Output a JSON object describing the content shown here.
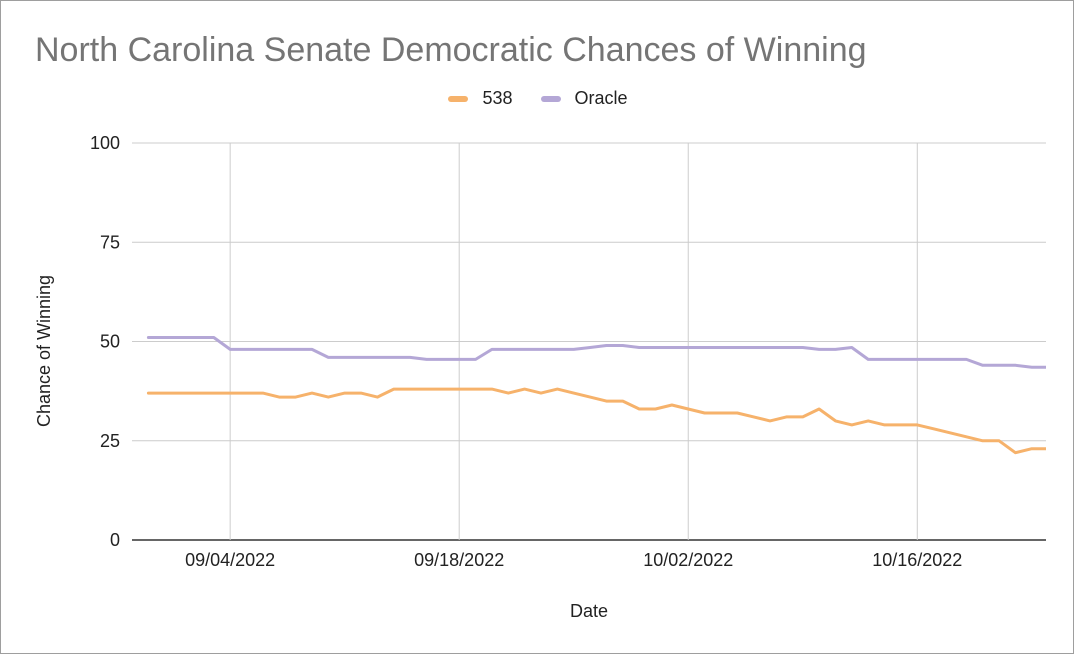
{
  "chart_data": {
    "type": "line",
    "title": "North Carolina Senate Democratic Chances of Winning",
    "xlabel": "Date",
    "ylabel": "Chance of Winning",
    "ylim": [
      0,
      100
    ],
    "yticks": [
      0,
      25,
      50,
      75,
      100
    ],
    "xlim": [
      "2022-08-29",
      "2022-10-25"
    ],
    "xticks": [
      {
        "date": "2022-09-04",
        "label": "09/04/2022"
      },
      {
        "date": "2022-09-18",
        "label": "09/18/2022"
      },
      {
        "date": "2022-10-02",
        "label": "10/02/2022"
      },
      {
        "date": "2022-10-16",
        "label": "10/16/2022"
      }
    ],
    "grid": true,
    "legend_position": "top-center",
    "series": [
      {
        "name": "538",
        "color": "#F6B26B",
        "points": [
          [
            "2022-08-30",
            37
          ],
          [
            "2022-09-01",
            37
          ],
          [
            "2022-09-02",
            37
          ],
          [
            "2022-09-03",
            37
          ],
          [
            "2022-09-04",
            37
          ],
          [
            "2022-09-05",
            37
          ],
          [
            "2022-09-06",
            37
          ],
          [
            "2022-09-07",
            36
          ],
          [
            "2022-09-08",
            36
          ],
          [
            "2022-09-09",
            37
          ],
          [
            "2022-09-10",
            36
          ],
          [
            "2022-09-11",
            37
          ],
          [
            "2022-09-12",
            37
          ],
          [
            "2022-09-13",
            36
          ],
          [
            "2022-09-14",
            38
          ],
          [
            "2022-09-15",
            38
          ],
          [
            "2022-09-16",
            38
          ],
          [
            "2022-09-17",
            38
          ],
          [
            "2022-09-18",
            38
          ],
          [
            "2022-09-19",
            38
          ],
          [
            "2022-09-20",
            38
          ],
          [
            "2022-09-21",
            37
          ],
          [
            "2022-09-22",
            38
          ],
          [
            "2022-09-23",
            37
          ],
          [
            "2022-09-24",
            38
          ],
          [
            "2022-09-25",
            37
          ],
          [
            "2022-09-26",
            36
          ],
          [
            "2022-09-27",
            35
          ],
          [
            "2022-09-28",
            35
          ],
          [
            "2022-09-29",
            33
          ],
          [
            "2022-09-30",
            33
          ],
          [
            "2022-10-01",
            34
          ],
          [
            "2022-10-02",
            33
          ],
          [
            "2022-10-03",
            32
          ],
          [
            "2022-10-04",
            32
          ],
          [
            "2022-10-05",
            32
          ],
          [
            "2022-10-06",
            31
          ],
          [
            "2022-10-07",
            30
          ],
          [
            "2022-10-08",
            31
          ],
          [
            "2022-10-09",
            31
          ],
          [
            "2022-10-10",
            33
          ],
          [
            "2022-10-11",
            30
          ],
          [
            "2022-10-12",
            29
          ],
          [
            "2022-10-13",
            30
          ],
          [
            "2022-10-14",
            29
          ],
          [
            "2022-10-15",
            29
          ],
          [
            "2022-10-16",
            29
          ],
          [
            "2022-10-17",
            28
          ],
          [
            "2022-10-18",
            27
          ],
          [
            "2022-10-19",
            26
          ],
          [
            "2022-10-20",
            25
          ],
          [
            "2022-10-21",
            25
          ],
          [
            "2022-10-22",
            22
          ],
          [
            "2022-10-23",
            23
          ],
          [
            "2022-10-24",
            23
          ],
          [
            "2022-10-25",
            22
          ],
          [
            "2022-10-26",
            22
          ],
          [
            "2022-10-27",
            22
          ]
        ]
      },
      {
        "name": "Oracle",
        "color": "#B4A7D6",
        "points": [
          [
            "2022-08-30",
            51
          ],
          [
            "2022-09-01",
            51
          ],
          [
            "2022-09-02",
            51
          ],
          [
            "2022-09-03",
            51
          ],
          [
            "2022-09-04",
            48
          ],
          [
            "2022-09-05",
            48
          ],
          [
            "2022-09-06",
            48
          ],
          [
            "2022-09-07",
            48
          ],
          [
            "2022-09-08",
            48
          ],
          [
            "2022-09-09",
            48
          ],
          [
            "2022-09-10",
            46
          ],
          [
            "2022-09-11",
            46
          ],
          [
            "2022-09-12",
            46
          ],
          [
            "2022-09-13",
            46
          ],
          [
            "2022-09-14",
            46
          ],
          [
            "2022-09-15",
            46
          ],
          [
            "2022-09-16",
            45.5
          ],
          [
            "2022-09-17",
            45.5
          ],
          [
            "2022-09-18",
            45.5
          ],
          [
            "2022-09-19",
            45.5
          ],
          [
            "2022-09-20",
            48
          ],
          [
            "2022-09-21",
            48
          ],
          [
            "2022-09-22",
            48
          ],
          [
            "2022-09-23",
            48
          ],
          [
            "2022-09-24",
            48
          ],
          [
            "2022-09-25",
            48
          ],
          [
            "2022-09-26",
            48.5
          ],
          [
            "2022-09-27",
            49
          ],
          [
            "2022-09-28",
            49
          ],
          [
            "2022-09-29",
            48.5
          ],
          [
            "2022-09-30",
            48.5
          ],
          [
            "2022-10-01",
            48.5
          ],
          [
            "2022-10-02",
            48.5
          ],
          [
            "2022-10-03",
            48.5
          ],
          [
            "2022-10-04",
            48.5
          ],
          [
            "2022-10-05",
            48.5
          ],
          [
            "2022-10-06",
            48.5
          ],
          [
            "2022-10-07",
            48.5
          ],
          [
            "2022-10-08",
            48.5
          ],
          [
            "2022-10-09",
            48.5
          ],
          [
            "2022-10-10",
            48
          ],
          [
            "2022-10-11",
            48
          ],
          [
            "2022-10-12",
            48.5
          ],
          [
            "2022-10-13",
            45.5
          ],
          [
            "2022-10-14",
            45.5
          ],
          [
            "2022-10-15",
            45.5
          ],
          [
            "2022-10-16",
            45.5
          ],
          [
            "2022-10-17",
            45.5
          ],
          [
            "2022-10-18",
            45.5
          ],
          [
            "2022-10-19",
            45.5
          ],
          [
            "2022-10-20",
            44
          ],
          [
            "2022-10-21",
            44
          ],
          [
            "2022-10-22",
            44
          ],
          [
            "2022-10-23",
            43.5
          ],
          [
            "2022-10-24",
            43.5
          ],
          [
            "2022-10-25",
            43.5
          ],
          [
            "2022-10-26",
            44
          ],
          [
            "2022-10-27",
            44
          ]
        ]
      }
    ]
  }
}
